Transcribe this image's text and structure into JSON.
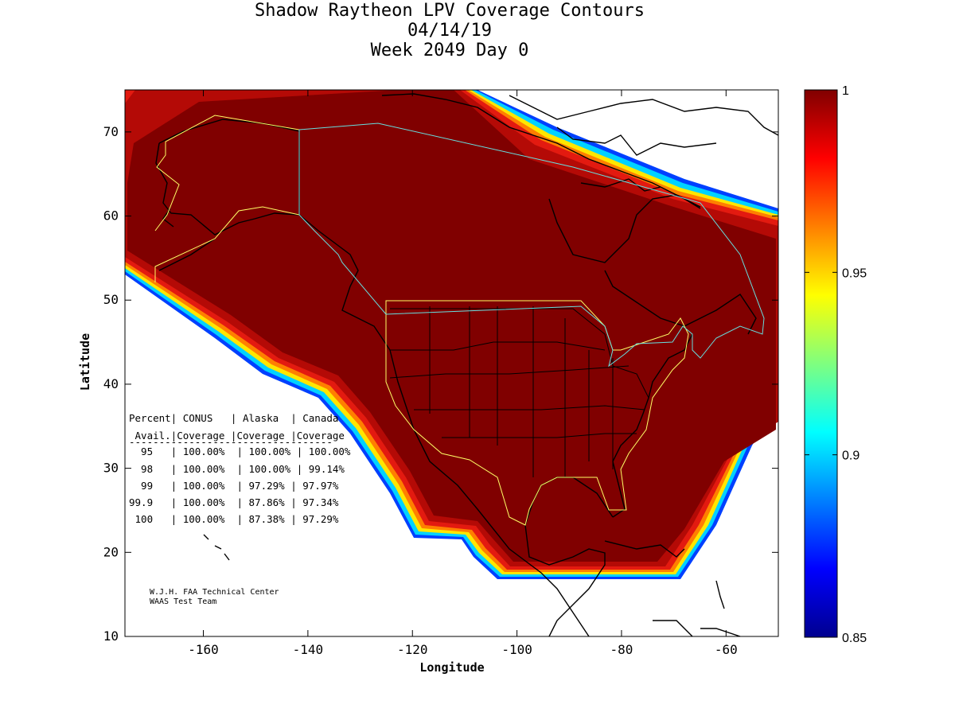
{
  "title": {
    "line1": "Shadow Raytheon LPV Coverage Contours",
    "line2": "04/14/19",
    "line3": "Week 2049 Day 0"
  },
  "axes": {
    "xlabel": "Longitude",
    "ylabel": "Latitude",
    "xlim": [
      -175,
      -50
    ],
    "ylim": [
      10,
      75
    ],
    "xticks": [
      -160,
      -140,
      -120,
      -100,
      -80,
      -60
    ],
    "yticks": [
      10,
      20,
      30,
      40,
      50,
      60,
      70
    ]
  },
  "colorbar": {
    "range": [
      0.85,
      1
    ],
    "ticks": [
      "1",
      "0.95",
      "0.9",
      "0.85"
    ],
    "tick_values": [
      1,
      0.95,
      0.9,
      0.85
    ]
  },
  "coverage_table": {
    "header1": "Percent| CONUS   | Alaska  | Canada",
    "header2": " Avail.|Coverage |Coverage |Coverage",
    "separator": "----------------------------------",
    "rows": [
      "  95   | 100.00%  | 100.00% | 100.00%",
      "  98   | 100.00%  | 100.00% | 99.14%",
      "  99   | 100.00%  | 97.29% | 97.97%",
      "99.9   | 100.00%  | 87.86% | 97.34%",
      " 100   | 100.00%  | 87.38% | 97.29%"
    ]
  },
  "credit": {
    "line1": "W.J.H. FAA Technical Center",
    "line2": "WAAS Test Team"
  },
  "colors": {
    "coverage_core": "#800000",
    "contour_red": "#e31a10",
    "contour_orange": "#ff7f00",
    "contour_yellow": "#ffe600",
    "contour_cyan": "#00d2ff",
    "contour_blue": "#0040ff",
    "boundary_yellow": "#ffff66",
    "boundary_cyan": "#66e0e0"
  }
}
